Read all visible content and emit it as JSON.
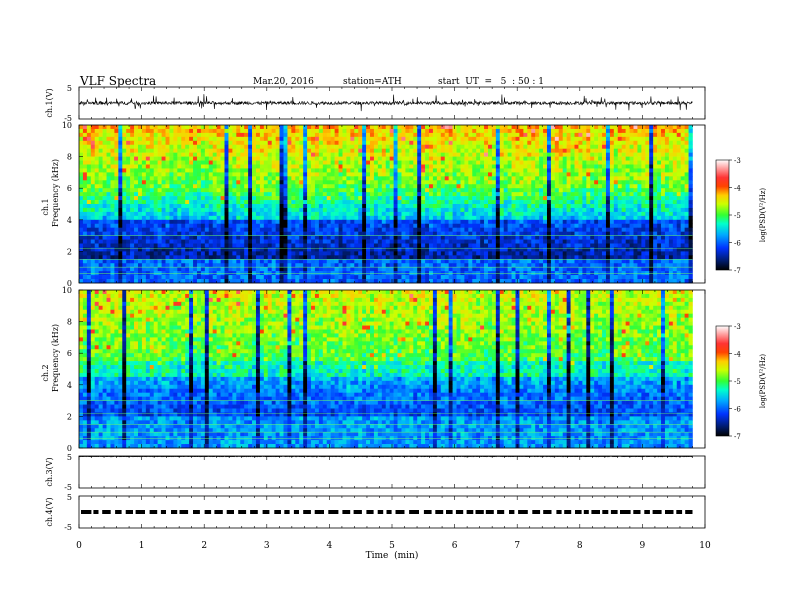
{
  "header": {
    "title": "VLF  Spectra",
    "date": "Mar.20, 2016",
    "station": "station=ATH",
    "start_ut": "start  UT  =   5  : 50 : 1"
  },
  "chart_data": [
    {
      "type": "line",
      "panel": "ch1-waveform",
      "ylabel": "ch.1(V)",
      "ylim": [
        -5,
        5
      ],
      "yticks": [
        "5",
        "-5"
      ],
      "xlim": [
        0,
        10
      ],
      "data_extent_x": [
        0,
        9.8
      ],
      "baseline": 0,
      "amplitude": 1
    },
    {
      "type": "heatmap",
      "panel": "ch1-spectrogram",
      "ylabel_top": "ch.1",
      "ylabel": "Frequency  (kHz)",
      "ylim": [
        0,
        10
      ],
      "yticks": [
        "0",
        "2",
        "4",
        "6",
        "8",
        "10"
      ],
      "xlim": [
        0,
        10
      ],
      "data_extent_x": [
        0,
        9.8
      ],
      "colorbar": {
        "label": "log(PSD(V²/Hz)",
        "ticks": [
          "-3",
          "-4",
          "-5",
          "-6",
          "-7"
        ],
        "range": [
          -7,
          -3
        ]
      }
    },
    {
      "type": "heatmap",
      "panel": "ch2-spectrogram",
      "ylabel_top": "ch.2",
      "ylabel": "Frequency  (kHz)",
      "ylim": [
        0,
        10
      ],
      "yticks": [
        "0",
        "2",
        "4",
        "6",
        "8",
        "10"
      ],
      "xlim": [
        0,
        10
      ],
      "data_extent_x": [
        0,
        9.8
      ],
      "colorbar": {
        "label": "log(PSD(V²/Hz)",
        "ticks": [
          "-3",
          "-4",
          "-5",
          "-6",
          "-7"
        ],
        "range": [
          -7,
          -3
        ]
      }
    },
    {
      "type": "line",
      "panel": "ch3-waveform",
      "ylabel": "ch.3(V)",
      "ylim": [
        -5,
        5
      ],
      "yticks": [
        "5",
        "-5"
      ],
      "xlim": [
        0,
        10
      ],
      "data_extent_x": [
        0,
        9.8
      ],
      "baseline": 4.8,
      "amplitude": 0.1
    },
    {
      "type": "line",
      "panel": "ch4-waveform",
      "ylabel": "ch.4(V)",
      "ylim": [
        -5,
        5
      ],
      "yticks": [
        "5",
        "-5"
      ],
      "xlim": [
        0,
        10
      ],
      "data_extent_x": [
        0,
        9.8
      ],
      "baseline": 0,
      "amplitude": 0.3
    }
  ],
  "xaxis": {
    "label": "Time  (min)",
    "ticks": [
      "0",
      "1",
      "2",
      "3",
      "4",
      "5",
      "6",
      "7",
      "8",
      "9",
      "10"
    ]
  }
}
